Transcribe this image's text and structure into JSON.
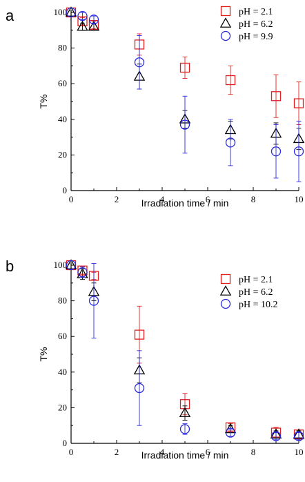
{
  "chart_data": [
    {
      "type": "scatter",
      "panel_label": "a",
      "xlabel": "Irradiation time / min",
      "ylabel": "T%",
      "xlim": [
        0,
        10
      ],
      "ylim": [
        0,
        100
      ],
      "xticks": [
        0,
        2,
        4,
        6,
        8,
        10
      ],
      "yticks": [
        0,
        20,
        40,
        60,
        80,
        100
      ],
      "xtick_labels": [
        "0",
        "2",
        "4",
        "6",
        "8",
        "10"
      ],
      "ytick_labels": [
        "0",
        "20",
        "40",
        "60",
        "80",
        "100"
      ],
      "grid": false,
      "legend_position": "top-right",
      "series": [
        {
          "name": "pH = 2.1",
          "marker": "square",
          "color": "#e02020",
          "points": [
            {
              "x": 0,
              "y": 100,
              "err": 0
            },
            {
              "x": 0.5,
              "y": 95,
              "err": 2
            },
            {
              "x": 1,
              "y": 93,
              "err": 2
            },
            {
              "x": 3,
              "y": 82,
              "err": 6
            },
            {
              "x": 5,
              "y": 69,
              "err": 6
            },
            {
              "x": 7,
              "y": 62,
              "err": 8
            },
            {
              "x": 9,
              "y": 53,
              "err": 12
            },
            {
              "x": 10,
              "y": 49,
              "err": 12
            }
          ]
        },
        {
          "name": "pH = 6.2",
          "marker": "triangle",
          "color": "#000000",
          "points": [
            {
              "x": 0,
              "y": 100,
              "err": 0
            },
            {
              "x": 0.5,
              "y": 92,
              "err": 2
            },
            {
              "x": 1,
              "y": 92,
              "err": 2
            },
            {
              "x": 3,
              "y": 64,
              "err": 7
            },
            {
              "x": 5,
              "y": 40,
              "err": 5
            },
            {
              "x": 7,
              "y": 34,
              "err": 5
            },
            {
              "x": 9,
              "y": 32,
              "err": 6
            },
            {
              "x": 10,
              "y": 29,
              "err": 6
            }
          ]
        },
        {
          "name": "pH = 9.9",
          "marker": "circle",
          "color": "#2a2ae0",
          "points": [
            {
              "x": 0,
              "y": 100,
              "err": 0
            },
            {
              "x": 0.5,
              "y": 98,
              "err": 2
            },
            {
              "x": 1,
              "y": 96,
              "err": 2
            },
            {
              "x": 3,
              "y": 72,
              "err": 15
            },
            {
              "x": 5,
              "y": 37,
              "err": 16
            },
            {
              "x": 7,
              "y": 27,
              "err": 13
            },
            {
              "x": 9,
              "y": 22,
              "err": 15
            },
            {
              "x": 10,
              "y": 22,
              "err": 17
            }
          ]
        }
      ]
    },
    {
      "type": "scatter",
      "panel_label": "b",
      "xlabel": "Irradiation time / min",
      "ylabel": "T%",
      "xlim": [
        0,
        10
      ],
      "ylim": [
        0,
        100
      ],
      "xticks": [
        0,
        2,
        4,
        6,
        8,
        10
      ],
      "yticks": [
        0,
        20,
        40,
        60,
        80,
        100
      ],
      "xtick_labels": [
        "0",
        "2",
        "4",
        "6",
        "8",
        "10"
      ],
      "ytick_labels": [
        "0",
        "20",
        "40",
        "60",
        "80",
        "100"
      ],
      "grid": false,
      "legend_position": "top-right",
      "series": [
        {
          "name": "pH = 2.1",
          "marker": "square",
          "color": "#e02020",
          "points": [
            {
              "x": 0,
              "y": 100,
              "err": 0
            },
            {
              "x": 0.5,
              "y": 97,
              "err": 2
            },
            {
              "x": 1,
              "y": 94,
              "err": 2
            },
            {
              "x": 3,
              "y": 61,
              "err": 16
            },
            {
              "x": 5,
              "y": 22,
              "err": 6
            },
            {
              "x": 7,
              "y": 9,
              "err": 2
            },
            {
              "x": 9,
              "y": 6,
              "err": 3
            },
            {
              "x": 10,
              "y": 5,
              "err": 2
            }
          ]
        },
        {
          "name": "pH = 6.2",
          "marker": "triangle",
          "color": "#000000",
          "points": [
            {
              "x": 0,
              "y": 100,
              "err": 0
            },
            {
              "x": 0.5,
              "y": 95,
              "err": 3
            },
            {
              "x": 1,
              "y": 85,
              "err": 5
            },
            {
              "x": 3,
              "y": 41,
              "err": 7
            },
            {
              "x": 5,
              "y": 17,
              "err": 4
            },
            {
              "x": 7,
              "y": 8,
              "err": 2
            },
            {
              "x": 9,
              "y": 5,
              "err": 2
            },
            {
              "x": 10,
              "y": 5,
              "err": 2
            }
          ]
        },
        {
          "name": "pH = 10.2",
          "marker": "circle",
          "color": "#2a2ae0",
          "points": [
            {
              "x": 0,
              "y": 100,
              "err": 0
            },
            {
              "x": 0.5,
              "y": 96,
              "err": 3
            },
            {
              "x": 1,
              "y": 80,
              "err": 21
            },
            {
              "x": 3,
              "y": 31,
              "err": 21
            },
            {
              "x": 5,
              "y": 8,
              "err": 3
            },
            {
              "x": 7,
              "y": 6,
              "err": 2
            },
            {
              "x": 9,
              "y": 4,
              "err": 2
            },
            {
              "x": 10,
              "y": 4,
              "err": 2
            }
          ]
        }
      ]
    }
  ]
}
